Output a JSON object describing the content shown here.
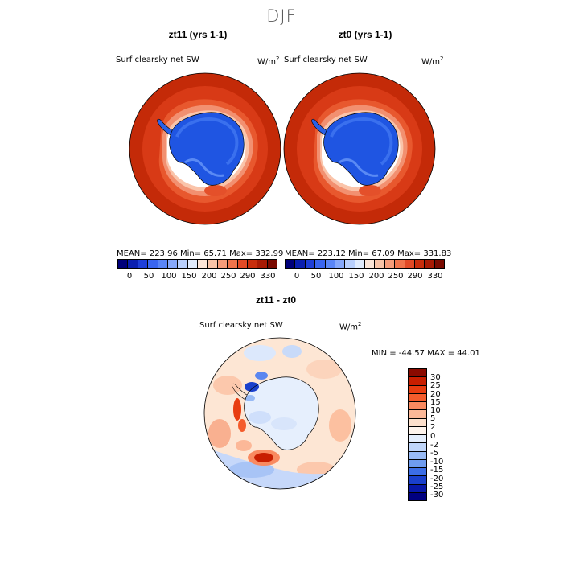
{
  "figure": {
    "title": "DJF",
    "panels": [
      {
        "title": "zt11 (yrs 1-1)",
        "variable": "Surf clearsky net SW",
        "units": "W/m",
        "units_exp": "2",
        "stats": "MEAN= 223.96  Min=  65.71  Max= 332.99"
      },
      {
        "title": "zt0 (yrs 1-1)",
        "variable": "Surf clearsky net SW",
        "units": "W/m",
        "units_exp": "2",
        "stats": "MEAN= 223.12  Min=  67.09  Max= 331.83"
      },
      {
        "title": "zt11 - zt0",
        "variable": "Surf clearsky net SW",
        "units": "W/m",
        "units_exp": "2",
        "stats": "MIN = -44.57 MAX =  44.01"
      }
    ],
    "abs_colorbar": {
      "ticks": [
        "0",
        "50",
        "100",
        "150",
        "200",
        "250",
        "290",
        "330"
      ],
      "colors": [
        "#00007a",
        "#0a1fb0",
        "#1e3fd8",
        "#3a66f0",
        "#5a86f7",
        "#86a8fa",
        "#b8cffc",
        "#e0ebfc",
        "#fce6d8",
        "#f9c4a8",
        "#f69c7a",
        "#f0744c",
        "#e24a26",
        "#c82d0c",
        "#a81a04",
        "#7a0a00"
      ]
    },
    "diff_colorbar": {
      "labels": [
        "30",
        "25",
        "20",
        "15",
        "10",
        "5",
        "2",
        "0",
        "-2",
        "-5",
        "-10",
        "-15",
        "-20",
        "-25",
        "-30"
      ],
      "colors": [
        "#8a0a00",
        "#c81e00",
        "#e83c10",
        "#f45c2c",
        "#f98a60",
        "#fcb898",
        "#fde0cc",
        "#fef4ec",
        "#e4eefc",
        "#c0d6fa",
        "#98baf5",
        "#6e9cf0",
        "#3c6ee6",
        "#1a40cc",
        "#0818a8",
        "#000080"
      ]
    },
    "chart_data": [
      {
        "type": "heatmap",
        "projection": "south polar stereographic",
        "title": "zt11 (yrs 1-1)",
        "variable": "Surf clearsky net SW (W/m2)",
        "season": "DJF",
        "mean": 223.96,
        "min": 65.71,
        "max": 332.99,
        "colorbar_levels": [
          0,
          50,
          100,
          150,
          200,
          250,
          290,
          330
        ]
      },
      {
        "type": "heatmap",
        "projection": "south polar stereographic",
        "title": "zt0 (yrs 1-1)",
        "variable": "Surf clearsky net SW (W/m2)",
        "season": "DJF",
        "mean": 223.12,
        "min": 67.09,
        "max": 331.83,
        "colorbar_levels": [
          0,
          50,
          100,
          150,
          200,
          250,
          290,
          330
        ]
      },
      {
        "type": "heatmap",
        "projection": "south polar stereographic",
        "title": "zt11 - zt0",
        "variable": "Surf clearsky net SW (W/m2)",
        "season": "DJF",
        "min": -44.57,
        "max": 44.01,
        "colorbar_levels": [
          -30,
          -25,
          -20,
          -15,
          -10,
          -5,
          -2,
          0,
          2,
          5,
          10,
          15,
          20,
          25,
          30
        ]
      }
    ]
  }
}
